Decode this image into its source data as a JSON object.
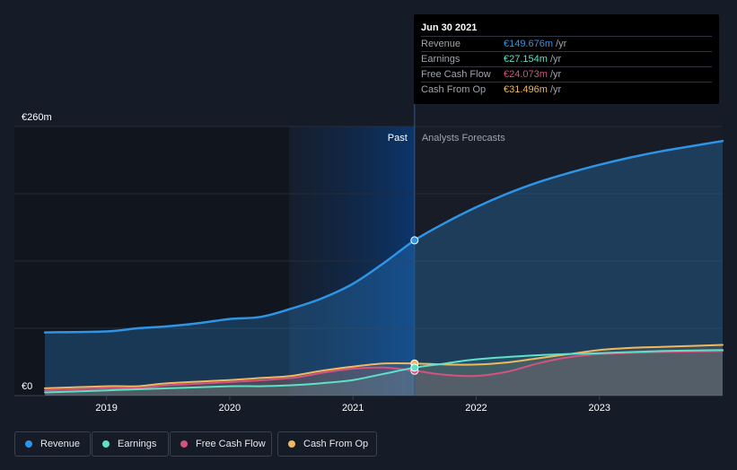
{
  "chart_data": {
    "type": "area",
    "x_unit": "year",
    "y_ticks": [
      {
        "value": 260,
        "label": "€260m"
      },
      {
        "value": 0,
        "label": "€0"
      }
    ],
    "ylim": [
      0,
      260
    ],
    "xlim": [
      2018.5,
      2024.0
    ],
    "x_ticks": [
      2019,
      2020,
      2021,
      2022,
      2023
    ],
    "x_tick_labels": [
      "2019",
      "2020",
      "2021",
      "2022",
      "2023"
    ],
    "divider_x": 2021.5,
    "past_label": "Past",
    "forecast_label": "Analysts Forecasts",
    "series": [
      {
        "name": "Revenue",
        "color": "#2e94e6",
        "x": [
          2018.5,
          2019.0,
          2019.25,
          2019.5,
          2019.75,
          2020.0,
          2020.25,
          2020.5,
          2020.75,
          2021.0,
          2021.25,
          2021.5,
          2021.75,
          2022.0,
          2022.25,
          2022.5,
          2022.75,
          2023.0,
          2023.25,
          2023.5,
          2023.75,
          2024.0
        ],
        "y": [
          61,
          62,
          65,
          67,
          70,
          74,
          76,
          84,
          94,
          108,
          128,
          150,
          167,
          182,
          195,
          206,
          215,
          223,
          230,
          236,
          241,
          246
        ]
      },
      {
        "name": "Earnings",
        "color": "#5fe0c9",
        "x": [
          2018.5,
          2019.0,
          2019.5,
          2020.0,
          2020.25,
          2020.5,
          2020.75,
          2021.0,
          2021.25,
          2021.5,
          2021.75,
          2022.0,
          2022.5,
          2023.0,
          2023.5,
          2024.0
        ],
        "y": [
          3,
          5,
          7,
          9,
          9,
          10,
          12,
          15,
          21,
          27,
          31,
          35,
          39,
          41,
          43,
          44
        ]
      },
      {
        "name": "Free Cash Flow",
        "color": "#d6527f",
        "x": [
          2018.5,
          2019.0,
          2019.25,
          2019.5,
          2020.0,
          2020.5,
          2020.75,
          2021.0,
          2021.25,
          2021.5,
          2021.75,
          2022.0,
          2022.25,
          2022.5,
          2022.75,
          2023.0,
          2023.5,
          2024.0
        ],
        "y": [
          5,
          7,
          7,
          10,
          13,
          17,
          22,
          26,
          27,
          24,
          20,
          19,
          23,
          31,
          37,
          40,
          42,
          43
        ]
      },
      {
        "name": "Cash From Op",
        "color": "#f0b860",
        "x": [
          2018.5,
          2019.0,
          2019.25,
          2019.5,
          2020.0,
          2020.25,
          2020.5,
          2020.75,
          2021.0,
          2021.25,
          2021.5,
          2021.75,
          2022.0,
          2022.25,
          2022.5,
          2022.75,
          2023.0,
          2023.25,
          2023.5,
          2024.0
        ],
        "y": [
          7,
          9,
          9,
          12,
          15,
          17,
          19,
          24,
          28,
          31,
          31,
          30,
          30,
          32,
          36,
          40,
          44,
          46,
          47,
          49
        ]
      }
    ]
  },
  "tooltip": {
    "date": "Jun 30 2021",
    "rows": [
      {
        "label": "Revenue",
        "value": "€149.676m",
        "unit": "/yr",
        "color": "#2e94e6"
      },
      {
        "label": "Earnings",
        "value": "€27.154m",
        "unit": "/yr",
        "color": "#5fe0c9"
      },
      {
        "label": "Free Cash Flow",
        "value": "€24.073m",
        "unit": "/yr",
        "color": "#d6527f"
      },
      {
        "label": "Cash From Op",
        "value": "€31.496m",
        "unit": "/yr",
        "color": "#f0b860"
      }
    ]
  },
  "legend": [
    {
      "label": "Revenue",
      "color": "#2e94e6"
    },
    {
      "label": "Earnings",
      "color": "#5fe0c9"
    },
    {
      "label": "Free Cash Flow",
      "color": "#d6527f"
    },
    {
      "label": "Cash From Op",
      "color": "#f0b860"
    }
  ]
}
